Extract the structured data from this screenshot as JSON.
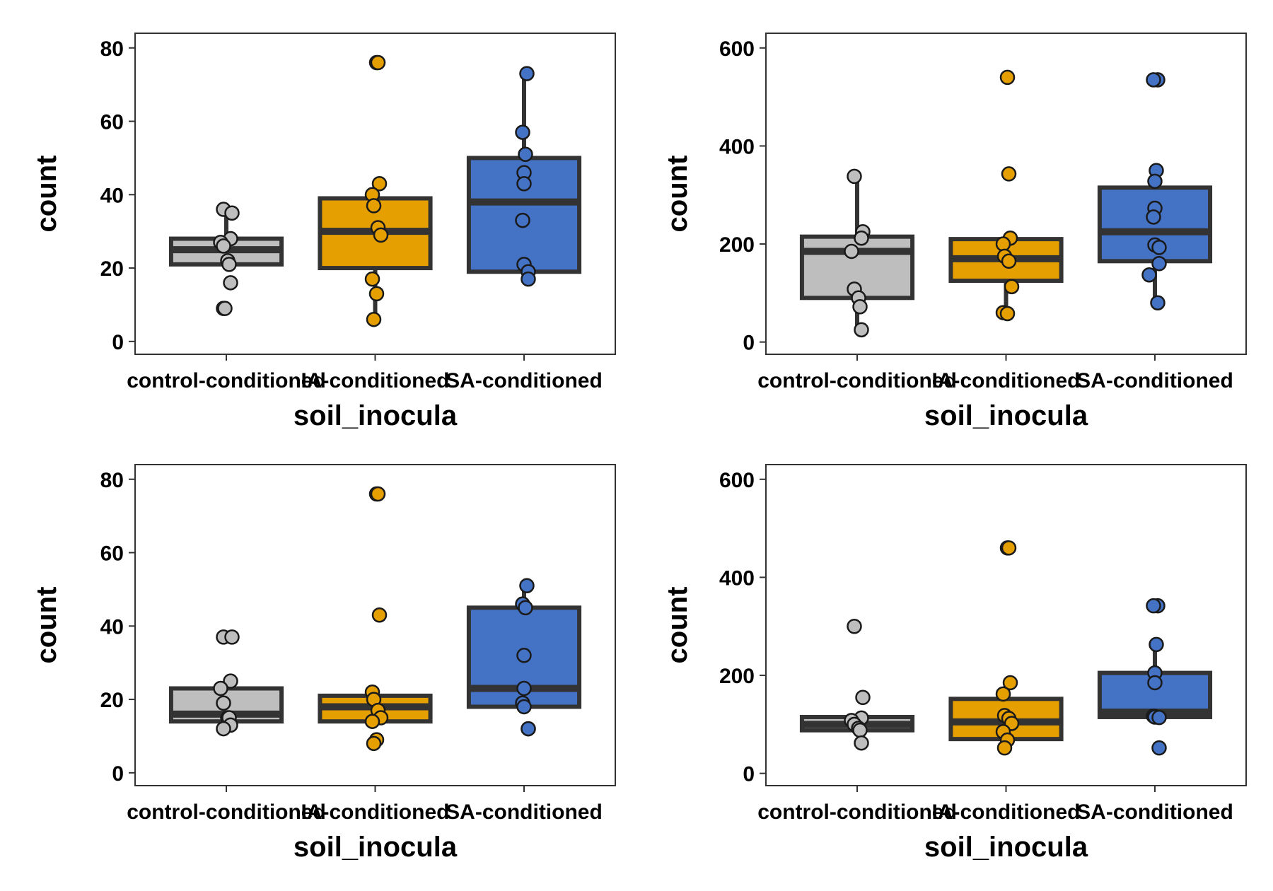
{
  "colors": {
    "control-conditioned": "#bebebe",
    "IA-conditioned": "#e69f00",
    "SA-conditioned": "#4472c4",
    "box_outline": "#333333",
    "point_outline": "#1a1a1a",
    "panel_border": "#333333"
  },
  "chart_data": [
    {
      "type": "box",
      "xlabel": "soil_inocula",
      "ylabel": "count",
      "categories": [
        "control-conditioned",
        "IA-conditioned",
        "SA-conditioned"
      ],
      "ylim": [
        -3.5,
        84
      ],
      "yticks": [
        0,
        20,
        40,
        60,
        80
      ],
      "boxes": [
        {
          "q1": 21,
          "median": 25,
          "q3": 28,
          "whisker_low": 21,
          "whisker_high": 36
        },
        {
          "q1": 20,
          "median": 30,
          "q3": 39,
          "whisker_low": 6,
          "whisker_high": 43
        },
        {
          "q1": 19,
          "median": 38,
          "q3": 50,
          "whisker_low": 17,
          "whisker_high": 73
        }
      ],
      "points": [
        [
          36,
          35,
          28,
          27,
          26,
          22,
          21,
          16,
          9,
          9
        ],
        [
          76,
          76,
          43,
          40,
          37,
          31,
          29,
          17,
          13,
          6
        ],
        [
          73,
          57,
          51,
          46,
          43,
          33,
          21,
          19,
          17
        ]
      ]
    },
    {
      "type": "box",
      "xlabel": "soil_inocula",
      "ylabel": "count",
      "categories": [
        "control-conditioned",
        "IA-conditioned",
        "SA-conditioned"
      ],
      "ylim": [
        -25,
        630
      ],
      "yticks": [
        0,
        200,
        400,
        600
      ],
      "boxes": [
        {
          "q1": 90,
          "median": 185,
          "q3": 215,
          "whisker_low": 25,
          "whisker_high": 335
        },
        {
          "q1": 125,
          "median": 170,
          "q3": 210,
          "whisker_low": 55,
          "whisker_high": 210
        },
        {
          "q1": 165,
          "median": 225,
          "q3": 315,
          "whisker_low": 80,
          "whisker_high": 350
        }
      ],
      "points": [
        [
          338,
          225,
          212,
          185,
          108,
          90,
          72,
          25
        ],
        [
          540,
          343,
          212,
          200,
          175,
          165,
          113,
          60,
          58
        ],
        [
          535,
          535,
          350,
          328,
          273,
          255,
          198,
          193,
          160,
          137,
          80
        ]
      ]
    },
    {
      "type": "box",
      "xlabel": "soil_inocula",
      "ylabel": "count",
      "categories": [
        "control-conditioned",
        "IA-conditioned",
        "SA-conditioned"
      ],
      "ylim": [
        -3.5,
        84
      ],
      "yticks": [
        0,
        20,
        40,
        60,
        80
      ],
      "boxes": [
        {
          "q1": 14,
          "median": 16,
          "q3": 23,
          "whisker_low": 14,
          "whisker_high": 23
        },
        {
          "q1": 14,
          "median": 18,
          "q3": 21,
          "whisker_low": 14,
          "whisker_high": 21
        },
        {
          "q1": 18,
          "median": 23,
          "q3": 45,
          "whisker_low": 18,
          "whisker_high": 51
        }
      ],
      "points": [
        [
          37,
          37,
          25,
          23,
          19,
          15,
          15,
          13,
          12
        ],
        [
          76,
          76,
          43,
          22,
          20,
          17,
          15,
          14,
          9,
          8
        ],
        [
          51,
          46,
          45,
          32,
          23,
          19,
          18,
          12,
          12
        ]
      ]
    },
    {
      "type": "box",
      "xlabel": "soil_inocula",
      "ylabel": "count",
      "categories": [
        "control-conditioned",
        "IA-conditioned",
        "SA-conditioned"
      ],
      "ylim": [
        -25,
        630
      ],
      "yticks": [
        0,
        200,
        400,
        600
      ],
      "boxes": [
        {
          "q1": 88,
          "median": 100,
          "q3": 115,
          "whisker_low": 88,
          "whisker_high": 115
        },
        {
          "q1": 70,
          "median": 105,
          "q3": 152,
          "whisker_low": 70,
          "whisker_high": 152
        },
        {
          "q1": 115,
          "median": 125,
          "q3": 205,
          "whisker_low": 115,
          "whisker_high": 270
        }
      ],
      "points": [
        [
          300,
          155,
          113,
          108,
          100,
          92,
          88,
          62
        ],
        [
          460,
          460,
          185,
          162,
          118,
          112,
          102,
          85,
          68,
          52
        ],
        [
          342,
          342,
          263,
          205,
          185,
          117,
          115,
          114,
          52
        ]
      ]
    }
  ]
}
